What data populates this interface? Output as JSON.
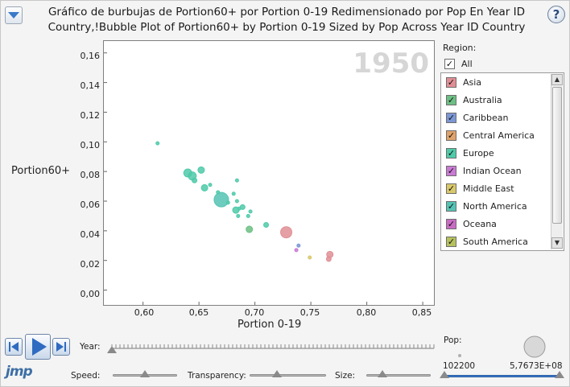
{
  "header": {
    "title": "Gráfico de burbujas de Portion60+ por Portion 0-19 Redimensionado por Pop En Year ID Country,!Bubble Plot of Portion60+ by Portion 0-19 Sized by Pop Across Year ID Country",
    "help_glyph": "?"
  },
  "plot": {
    "year": "1950"
  },
  "chart_data": {
    "type": "scatter",
    "title": "Bubble Plot of Portion60+ by Portion 0-19 Sized by Pop Across Year ID Country",
    "xlabel": "Portion 0-19",
    "ylabel": "Portion60+",
    "xlim": [
      0.565,
      0.86
    ],
    "ylim": [
      -0.01,
      0.168
    ],
    "xticks": [
      "0,60",
      "0,65",
      "0,70",
      "0,75",
      "0,80",
      "0,85"
    ],
    "xtick_values": [
      0.6,
      0.65,
      0.7,
      0.75,
      0.8,
      0.85
    ],
    "yticks": [
      "0,00",
      "0,02",
      "0,04",
      "0,06",
      "0,08",
      "0,10",
      "0,12",
      "0,14",
      "0,16"
    ],
    "ytick_values": [
      0.0,
      0.02,
      0.04,
      0.06,
      0.08,
      0.1,
      0.12,
      0.14,
      0.16
    ],
    "size_variable": "Pop",
    "points": [
      {
        "x": 0.613,
        "y": 0.099,
        "r": 2,
        "region": "Europe"
      },
      {
        "x": 0.64,
        "y": 0.079,
        "r": 5,
        "region": "Europe"
      },
      {
        "x": 0.644,
        "y": 0.077,
        "r": 5,
        "region": "Europe"
      },
      {
        "x": 0.652,
        "y": 0.081,
        "r": 4,
        "region": "Europe"
      },
      {
        "x": 0.646,
        "y": 0.074,
        "r": 3,
        "region": "Europe"
      },
      {
        "x": 0.655,
        "y": 0.069,
        "r": 4,
        "region": "Europe"
      },
      {
        "x": 0.66,
        "y": 0.071,
        "r": 2,
        "region": "Europe"
      },
      {
        "x": 0.67,
        "y": 0.061,
        "r": 9,
        "region": "North America"
      },
      {
        "x": 0.667,
        "y": 0.066,
        "r": 2,
        "region": "Europe"
      },
      {
        "x": 0.676,
        "y": 0.059,
        "r": 2,
        "region": "Europe"
      },
      {
        "x": 0.681,
        "y": 0.065,
        "r": 2,
        "region": "Europe"
      },
      {
        "x": 0.684,
        "y": 0.074,
        "r": 2,
        "region": "Europe"
      },
      {
        "x": 0.684,
        "y": 0.06,
        "r": 2,
        "region": "Europe"
      },
      {
        "x": 0.686,
        "y": 0.055,
        "r": 2,
        "region": "Europe"
      },
      {
        "x": 0.683,
        "y": 0.054,
        "r": 4,
        "region": "Europe"
      },
      {
        "x": 0.689,
        "y": 0.056,
        "r": 3,
        "region": "Europe"
      },
      {
        "x": 0.685,
        "y": 0.05,
        "r": 2,
        "region": "Europe"
      },
      {
        "x": 0.696,
        "y": 0.053,
        "r": 2,
        "region": "Europe"
      },
      {
        "x": 0.694,
        "y": 0.05,
        "r": 2,
        "region": "Europe"
      },
      {
        "x": 0.695,
        "y": 0.041,
        "r": 4,
        "region": "Australia"
      },
      {
        "x": 0.71,
        "y": 0.044,
        "r": 3,
        "region": "Europe"
      },
      {
        "x": 0.728,
        "y": 0.039,
        "r": 7,
        "region": "Asia"
      },
      {
        "x": 0.739,
        "y": 0.03,
        "r": 2,
        "region": "Caribbean"
      },
      {
        "x": 0.737,
        "y": 0.027,
        "r": 2,
        "region": "Indian Ocean"
      },
      {
        "x": 0.749,
        "y": 0.022,
        "r": 2,
        "region": "Middle East"
      },
      {
        "x": 0.767,
        "y": 0.024,
        "r": 4,
        "region": "Asia"
      },
      {
        "x": 0.766,
        "y": 0.021,
        "r": 3,
        "region": "Asia"
      }
    ]
  },
  "legend": {
    "title": "Region:",
    "all_label": "All",
    "items": [
      {
        "label": "Asia",
        "color": "#e08f95"
      },
      {
        "label": "Australia",
        "color": "#6cbf84"
      },
      {
        "label": "Caribbean",
        "color": "#7b96d4"
      },
      {
        "label": "Central America",
        "color": "#e0a36a"
      },
      {
        "label": "Europe",
        "color": "#4fcaa9"
      },
      {
        "label": "Indian Ocean",
        "color": "#c97ad4"
      },
      {
        "label": "Middle East",
        "color": "#d8c86a"
      },
      {
        "label": "North America",
        "color": "#55c3b4"
      },
      {
        "label": "Oceana",
        "color": "#c96cc4"
      },
      {
        "label": "South America",
        "color": "#b6c15e"
      }
    ],
    "check_glyph": "✓"
  },
  "controls": {
    "year_label": "Year:",
    "speed_label": "Speed:",
    "transparency_label": "Transparency:",
    "size_label": "Size:",
    "pop_label": "Pop:",
    "pop_min": "102200",
    "pop_max": "5,7673E+08"
  },
  "logo": "jmp"
}
